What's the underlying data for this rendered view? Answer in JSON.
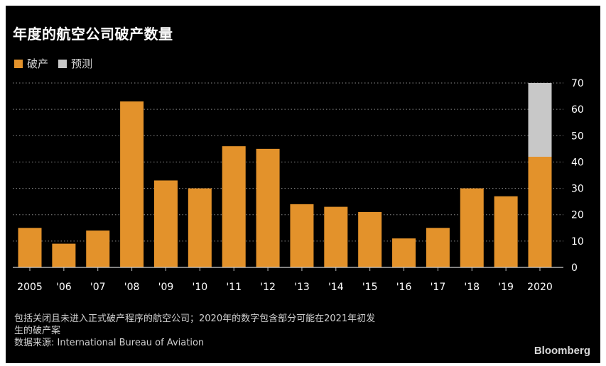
{
  "colors": {
    "background": "#000000",
    "bankrupt": "#e3922b",
    "forecast": "#c8c8c8",
    "grid": "#8a8a8a",
    "text": "#ffffff"
  },
  "footnote": {
    "line1": "包括关闭且未进入正式破产程序的航空公司；2020年的数字包含部分可能在2021年初发",
    "line2": "生的破产案",
    "source": "数据来源: International Bureau of Aviation"
  },
  "brand": "Bloomberg",
  "chart_data": {
    "type": "bar",
    "stacked": true,
    "title": "年度的航空公司破产数量",
    "categories": [
      "2005",
      "'06",
      "'07",
      "'08",
      "'09",
      "'10",
      "'11",
      "'12",
      "'13",
      "'14",
      "'15",
      "'16",
      "'17",
      "'18",
      "'19",
      "2020"
    ],
    "series": [
      {
        "name": "破产",
        "color": "#e3922b",
        "values": [
          15,
          9,
          14,
          63,
          33,
          30,
          46,
          45,
          24,
          23,
          21,
          11,
          15,
          30,
          27,
          42
        ]
      },
      {
        "name": "预测",
        "color": "#c8c8c8",
        "values": [
          0,
          0,
          0,
          0,
          0,
          0,
          0,
          0,
          0,
          0,
          0,
          0,
          0,
          0,
          0,
          28
        ]
      }
    ],
    "ylim": [
      0,
      70
    ],
    "yticks": [
      0,
      10,
      20,
      30,
      40,
      50,
      60,
      70
    ],
    "y_axis_side": "right",
    "grid": true,
    "legend_position": "top-left",
    "xlabel": "",
    "ylabel": ""
  }
}
